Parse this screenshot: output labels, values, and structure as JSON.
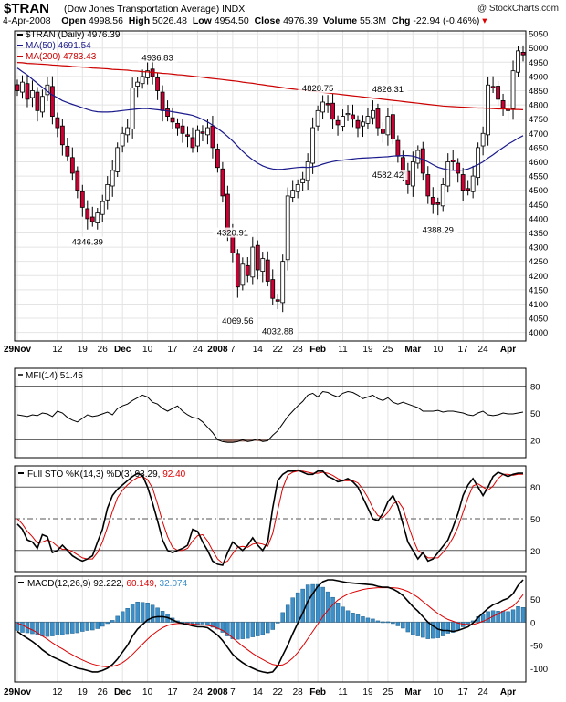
{
  "header": {
    "symbol": "$TRAN",
    "name": "(Dow Jones Transportation Average)",
    "exchange": "INDX",
    "watermark": "@ StockCharts.com",
    "date": "4-Apr-2008",
    "open_label": "Open",
    "open": "4998.56",
    "high_label": "High",
    "high": "5026.48",
    "low_label": "Low",
    "low": "4954.50",
    "close_label": "Close",
    "close": "4976.39",
    "volume_label": "Volume",
    "volume": "55.3M",
    "chg_label": "Chg",
    "chg": "-22.94 (-0.46%)",
    "chg_marker": "▾"
  },
  "chart_data": [
    {
      "type": "candlestick",
      "panel": "price",
      "legend": [
        {
          "text": "$TRAN (Daily) 4976.39",
          "color": "#000000"
        },
        {
          "text": "MA(50) 4691.54",
          "color": "#1a1a8c"
        },
        {
          "text": "MA(200) 4783.43",
          "color": "#cc0000"
        }
      ],
      "ylim": [
        3970,
        5060
      ],
      "yticks": [
        4000,
        4050,
        4100,
        4150,
        4200,
        4250,
        4300,
        4350,
        4400,
        4450,
        4500,
        4550,
        4600,
        4650,
        4700,
        4750,
        4800,
        4850,
        4900,
        4950,
        5000,
        5050
      ],
      "x_ticks": [
        {
          "i": 0,
          "label": "29Nov",
          "bold": true
        },
        {
          "i": 8,
          "label": "12"
        },
        {
          "i": 13,
          "label": "19"
        },
        {
          "i": 17,
          "label": "26"
        },
        {
          "i": 21,
          "label": "Dec",
          "bold": true
        },
        {
          "i": 26,
          "label": "10"
        },
        {
          "i": 31,
          "label": "17"
        },
        {
          "i": 36,
          "label": "24"
        },
        {
          "i": 40,
          "label": "2008",
          "bold": true
        },
        {
          "i": 43,
          "label": "7"
        },
        {
          "i": 48,
          "label": "14"
        },
        {
          "i": 52,
          "label": "22"
        },
        {
          "i": 56,
          "label": "28"
        },
        {
          "i": 60,
          "label": "Feb",
          "bold": true
        },
        {
          "i": 65,
          "label": "11"
        },
        {
          "i": 70,
          "label": "19"
        },
        {
          "i": 74,
          "label": "25"
        },
        {
          "i": 79,
          "label": "Mar",
          "bold": true
        },
        {
          "i": 84,
          "label": "10"
        },
        {
          "i": 89,
          "label": "17"
        },
        {
          "i": 93,
          "label": "24"
        },
        {
          "i": 98,
          "label": "Apr",
          "bold": true
        }
      ],
      "annotations": [
        {
          "i": 28,
          "value": 4936.83,
          "text": "4936.83",
          "pos": "above"
        },
        {
          "i": 14,
          "value": 4346.39,
          "text": "4346.39",
          "pos": "below"
        },
        {
          "i": 43,
          "value": 4320.91,
          "text": "4320.91",
          "pos": "above"
        },
        {
          "i": 44,
          "value": 4069.56,
          "text": "4069.56",
          "pos": "below"
        },
        {
          "i": 52,
          "value": 4032.88,
          "text": "4032.88",
          "pos": "below"
        },
        {
          "i": 60,
          "value": 4828.75,
          "text": "4828.75",
          "pos": "above"
        },
        {
          "i": 74,
          "value": 4826.31,
          "text": "4826.31",
          "pos": "above"
        },
        {
          "i": 74,
          "value": 4582.42,
          "text": "4582.42",
          "pos": "below"
        },
        {
          "i": 84,
          "value": 4388.29,
          "text": "4388.29",
          "pos": "below"
        }
      ],
      "close": [
        4850,
        4880,
        4820,
        4850,
        4780,
        4830,
        4870,
        4760,
        4720,
        4660,
        4620,
        4560,
        4500,
        4440,
        4400,
        4390,
        4420,
        4460,
        4520,
        4570,
        4650,
        4700,
        4720,
        4860,
        4880,
        4900,
        4920,
        4900,
        4850,
        4780,
        4760,
        4740,
        4720,
        4700,
        4690,
        4650,
        4710,
        4700,
        4720,
        4650,
        4580,
        4480,
        4350,
        4280,
        4160,
        4240,
        4200,
        4300,
        4220,
        4260,
        4180,
        4120,
        4110,
        4250,
        4480,
        4500,
        4520,
        4540,
        4600,
        4720,
        4780,
        4810,
        4800,
        4750,
        4730,
        4760,
        4770,
        4750,
        4720,
        4740,
        4760,
        4780,
        4720,
        4700,
        4760,
        4680,
        4620,
        4560,
        4520,
        4600,
        4640,
        4560,
        4480,
        4450,
        4450,
        4520,
        4600,
        4600,
        4560,
        4500,
        4500,
        4550,
        4650,
        4700,
        4870,
        4860,
        4820,
        4790,
        4780,
        4920,
        4990,
        4976
      ],
      "ma50": [
        4930,
        4917,
        4905,
        4890,
        4876,
        4862,
        4848,
        4835,
        4825,
        4815,
        4808,
        4802,
        4796,
        4790,
        4784,
        4779,
        4776,
        4775,
        4775,
        4776,
        4778,
        4780,
        4782,
        4784,
        4786,
        4787,
        4787,
        4785,
        4783,
        4781,
        4779,
        4776,
        4773,
        4770,
        4767,
        4763,
        4757,
        4749,
        4740,
        4729,
        4717,
        4704,
        4689,
        4673,
        4655,
        4637,
        4621,
        4607,
        4595,
        4586,
        4579,
        4575,
        4573,
        4574,
        4576,
        4578,
        4580,
        4581,
        4580,
        4582,
        4586,
        4592,
        4597,
        4601,
        4604,
        4606,
        4608,
        4610,
        4612,
        4613,
        4614,
        4615,
        4616,
        4617,
        4618,
        4620,
        4621,
        4622,
        4622,
        4620,
        4615,
        4608,
        4600,
        4590,
        4581,
        4576,
        4572,
        4570,
        4570,
        4571,
        4575,
        4582,
        4590,
        4600,
        4613,
        4625,
        4638,
        4650,
        4662,
        4672,
        4683,
        4692
      ],
      "ma200": [
        4949,
        4948,
        4946,
        4945,
        4944,
        4943,
        4942,
        4940,
        4939,
        4938,
        4937,
        4935,
        4934,
        4933,
        4932,
        4930,
        4929,
        4928,
        4927,
        4925,
        4924,
        4923,
        4922,
        4920,
        4919,
        4917,
        4916,
        4914,
        4913,
        4911,
        4910,
        4908,
        4906,
        4905,
        4903,
        4901,
        4899,
        4897,
        4895,
        4893,
        4891,
        4889,
        4887,
        4885,
        4883,
        4880,
        4878,
        4876,
        4873,
        4871,
        4868,
        4866,
        4863,
        4861,
        4858,
        4856,
        4854,
        4852,
        4850,
        4848,
        4846,
        4844,
        4842,
        4840,
        4838,
        4836,
        4834,
        4832,
        4830,
        4828,
        4826,
        4824,
        4822,
        4820,
        4818,
        4816,
        4814,
        4812,
        4810,
        4808,
        4806,
        4804,
        4802,
        4800,
        4798,
        4796,
        4795,
        4794,
        4793,
        4792,
        4791,
        4790,
        4789,
        4789,
        4788,
        4787,
        4786,
        4786,
        4785,
        4784,
        4784,
        4783
      ]
    },
    {
      "type": "line",
      "panel": "mfi",
      "legend": "MFI(14) 51.45",
      "ylim": [
        0,
        100
      ],
      "yticks": [
        20,
        50,
        80
      ],
      "refs": [
        20,
        80
      ],
      "shade_below": 20,
      "values": [
        48,
        47,
        46,
        48,
        47,
        50,
        49,
        46,
        52,
        50,
        45,
        42,
        40,
        44,
        48,
        46,
        47,
        49,
        51,
        48,
        55,
        58,
        60,
        64,
        67,
        70,
        68,
        62,
        60,
        55,
        52,
        55,
        58,
        52,
        48,
        45,
        44,
        40,
        34,
        28,
        20,
        18,
        17,
        17,
        18,
        20,
        18,
        19,
        21,
        18,
        19,
        25,
        30,
        38,
        46,
        52,
        58,
        63,
        70,
        72,
        68,
        74,
        73,
        70,
        68,
        72,
        74,
        73,
        70,
        66,
        68,
        70,
        66,
        64,
        67,
        62,
        60,
        62,
        60,
        58,
        56,
        52,
        52,
        52,
        53,
        51,
        52,
        52,
        51,
        50,
        48,
        47,
        50,
        52,
        48,
        47,
        48,
        50,
        49,
        49,
        50,
        51
      ]
    },
    {
      "type": "line",
      "panel": "stochastic",
      "legend_prefix": "Full STO %K(14,3) %D(3)",
      "k_value": "93.29",
      "d_value": "92.40",
      "ylim": [
        0,
        100
      ],
      "yticks": [
        20,
        50,
        80
      ],
      "refs": [
        20,
        80
      ],
      "mid": 50,
      "k": [
        45,
        40,
        30,
        28,
        22,
        35,
        33,
        18,
        20,
        25,
        20,
        15,
        12,
        10,
        12,
        15,
        28,
        40,
        60,
        72,
        78,
        82,
        86,
        90,
        93,
        91,
        80,
        65,
        48,
        30,
        20,
        18,
        20,
        22,
        25,
        40,
        38,
        28,
        20,
        10,
        7,
        6,
        18,
        28,
        24,
        20,
        25,
        32,
        25,
        20,
        28,
        60,
        86,
        92,
        95,
        95,
        96,
        94,
        92,
        92,
        95,
        95,
        90,
        88,
        85,
        86,
        88,
        85,
        80,
        70,
        60,
        50,
        48,
        55,
        66,
        72,
        62,
        45,
        28,
        20,
        12,
        18,
        10,
        12,
        18,
        24,
        30,
        42,
        55,
        72,
        82,
        88,
        80,
        72,
        80,
        90,
        94,
        92,
        90,
        92,
        93,
        93
      ],
      "d": [
        50,
        45,
        38,
        33,
        27,
        28,
        30,
        28,
        24,
        21,
        21,
        19,
        16,
        13,
        12,
        12,
        18,
        28,
        42,
        57,
        70,
        77,
        82,
        86,
        89,
        90,
        87,
        79,
        64,
        47,
        33,
        23,
        20,
        20,
        22,
        29,
        34,
        35,
        29,
        20,
        12,
        8,
        10,
        17,
        23,
        24,
        23,
        26,
        27,
        26,
        24,
        36,
        58,
        79,
        91,
        94,
        95,
        95,
        94,
        93,
        93,
        94,
        93,
        91,
        88,
        86,
        86,
        86,
        84,
        78,
        70,
        60,
        53,
        51,
        56,
        64,
        67,
        60,
        45,
        31,
        20,
        17,
        13,
        13,
        13,
        18,
        24,
        32,
        42,
        56,
        70,
        81,
        83,
        80,
        77,
        81,
        88,
        92,
        92,
        91,
        92,
        92
      ]
    },
    {
      "type": "line+bar",
      "panel": "macd",
      "legend_prefix": "MACD(12,26,9)",
      "macd_value": "92.222",
      "signal_value": "60.149",
      "hist_value": "32.074",
      "ylim": [
        -130,
        100
      ],
      "yticks": [
        -100,
        -50,
        0,
        50
      ],
      "macd": [
        -20,
        -28,
        -35,
        -42,
        -50,
        -60,
        -68,
        -75,
        -80,
        -85,
        -90,
        -95,
        -100,
        -102,
        -105,
        -108,
        -108,
        -105,
        -100,
        -92,
        -80,
        -65,
        -50,
        -30,
        -15,
        -5,
        5,
        10,
        12,
        12,
        10,
        5,
        0,
        -3,
        -5,
        -8,
        -10,
        -10,
        -12,
        -20,
        -28,
        -40,
        -55,
        -70,
        -80,
        -88,
        -95,
        -100,
        -105,
        -108,
        -110,
        -108,
        -95,
        -72,
        -50,
        -25,
        -2,
        20,
        45,
        62,
        78,
        88,
        92,
        92,
        90,
        88,
        86,
        85,
        84,
        83,
        82,
        81,
        78,
        76,
        76,
        72,
        66,
        58,
        46,
        34,
        24,
        12,
        0,
        -8,
        -15,
        -18,
        -18,
        -20,
        -18,
        -14,
        -10,
        -2,
        10,
        20,
        30,
        38,
        42,
        48,
        52,
        62,
        80,
        92
      ],
      "signal": [
        -2,
        -6,
        -12,
        -17,
        -23,
        -30,
        -37,
        -45,
        -52,
        -58,
        -65,
        -71,
        -77,
        -82,
        -87,
        -91,
        -94,
        -96,
        -97,
        -96,
        -93,
        -88,
        -80,
        -70,
        -59,
        -48,
        -37,
        -27,
        -19,
        -12,
        -7,
        -4,
        -3,
        -3,
        -3,
        -4,
        -5,
        -6,
        -7,
        -9,
        -13,
        -18,
        -25,
        -34,
        -43,
        -52,
        -60,
        -68,
        -75,
        -81,
        -87,
        -92,
        -94,
        -93,
        -87,
        -78,
        -66,
        -52,
        -36,
        -20,
        -4,
        12,
        26,
        38,
        48,
        55,
        61,
        65,
        68,
        71,
        73,
        74,
        75,
        75,
        75,
        75,
        74,
        71,
        67,
        61,
        54,
        45,
        36,
        27,
        19,
        12,
        6,
        2,
        -2,
        -4,
        -5,
        -5,
        -2,
        2,
        7,
        13,
        18,
        24,
        29,
        35,
        46,
        60
      ]
    }
  ]
}
